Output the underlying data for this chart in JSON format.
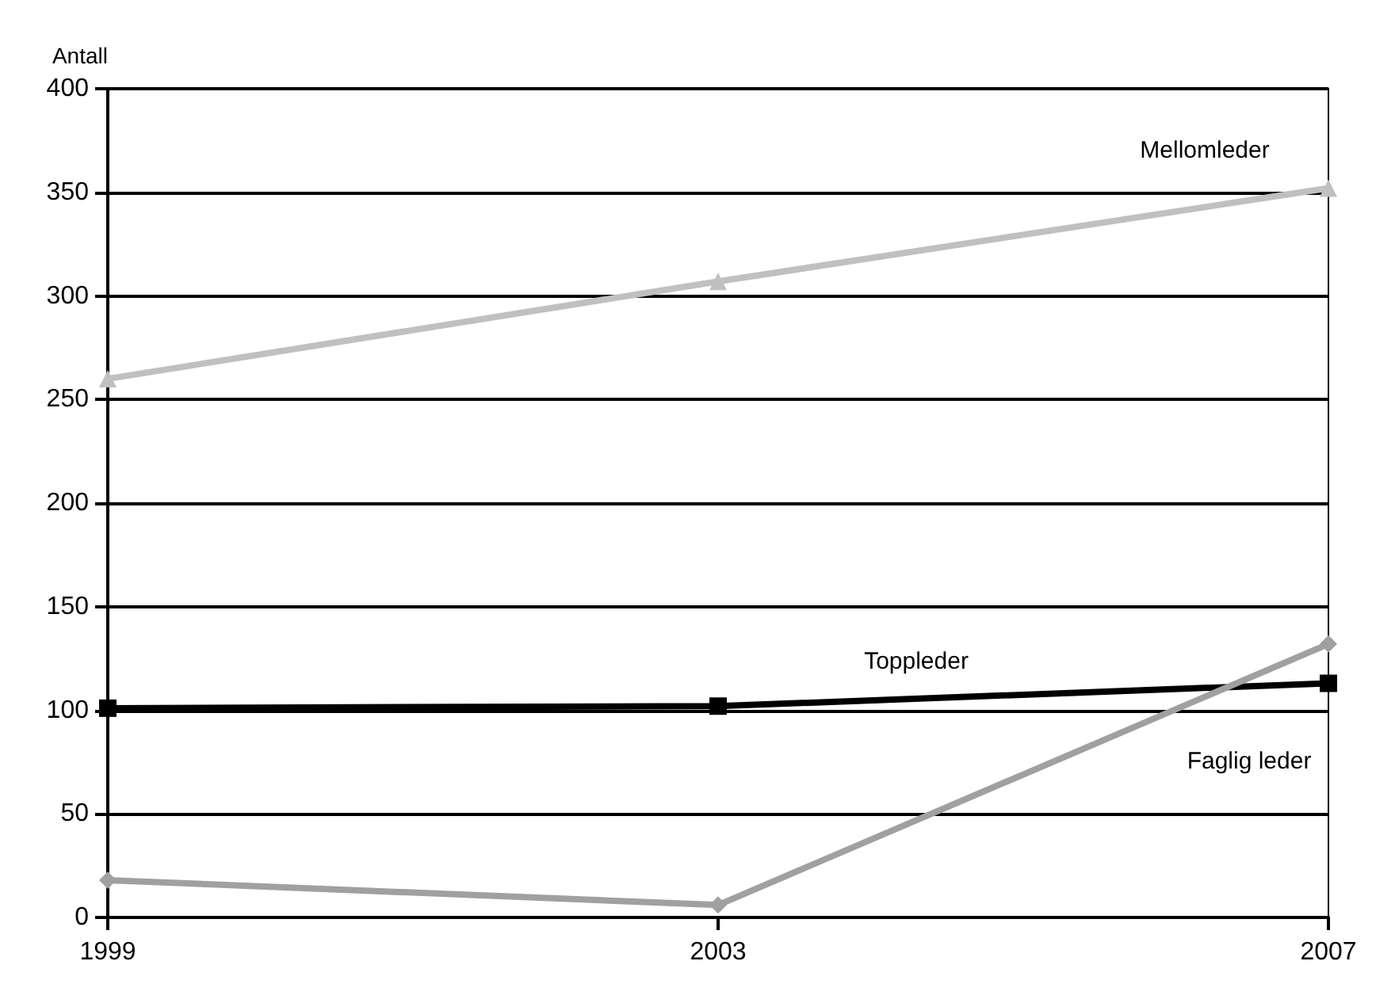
{
  "chart_data": {
    "type": "line",
    "ylabel": "Antall",
    "x": [
      1999,
      2003,
      2007
    ],
    "xlim": [
      1999,
      2007
    ],
    "xticks": [
      1999,
      2003,
      2007
    ],
    "ylim": [
      0,
      400
    ],
    "yticks": [
      0,
      50,
      100,
      150,
      200,
      250,
      300,
      350,
      400
    ],
    "grid": "y",
    "legend": false,
    "series": [
      {
        "name": "Toppleder",
        "color": "#000000",
        "marker": "square",
        "values": [
          101,
          102,
          113
        ]
      },
      {
        "name": "Mellomleder",
        "color": "#c0c0c0",
        "marker": "triangle",
        "values": [
          260,
          307,
          352
        ]
      },
      {
        "name": "Faglig leder",
        "color": "#a0a0a0",
        "marker": "diamond",
        "values": [
          18,
          6,
          132
        ]
      }
    ]
  }
}
